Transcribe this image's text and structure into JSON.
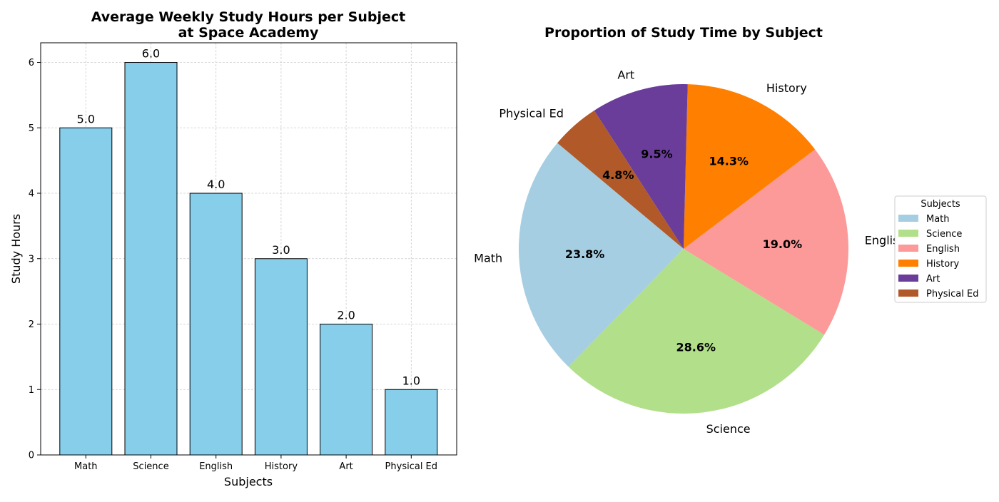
{
  "chart_data": [
    {
      "type": "bar",
      "title": "Average Weekly Study Hours per Subject",
      "subtitle": "at Space Academy",
      "xlabel": "Subjects",
      "ylabel": "Study Hours",
      "categories": [
        "Math",
        "Science",
        "English",
        "History",
        "Art",
        "Physical Ed"
      ],
      "values": [
        5.0,
        6.0,
        4.0,
        3.0,
        2.0,
        1.0
      ],
      "data_labels": [
        "5.0",
        "6.0",
        "4.0",
        "3.0",
        "2.0",
        "1.0"
      ],
      "yticks": [
        0,
        1,
        2,
        3,
        4,
        5,
        6
      ],
      "ylim": [
        0,
        6.3
      ],
      "grid": true,
      "bar_color": "#87ceeb",
      "edge_color": "#000000"
    },
    {
      "type": "pie",
      "title": "Proportion of Study Time by Subject",
      "labels": [
        "Math",
        "Science",
        "English",
        "History",
        "Art",
        "Physical Ed"
      ],
      "values": [
        5,
        6,
        4,
        3,
        2,
        1
      ],
      "percent_labels": [
        "23.8%",
        "28.6%",
        "19.0%",
        "14.3%",
        "9.5%",
        "4.8%"
      ],
      "colors": [
        "#a6cee3",
        "#b2df8a",
        "#fb9a99",
        "#ff7f00",
        "#6a3d9a",
        "#b15928"
      ],
      "start_angle_deg": 140,
      "legend": {
        "title": "Subjects",
        "position": "right",
        "items": [
          "Math",
          "Science",
          "English",
          "History",
          "Art",
          "Physical Ed"
        ]
      }
    }
  ]
}
